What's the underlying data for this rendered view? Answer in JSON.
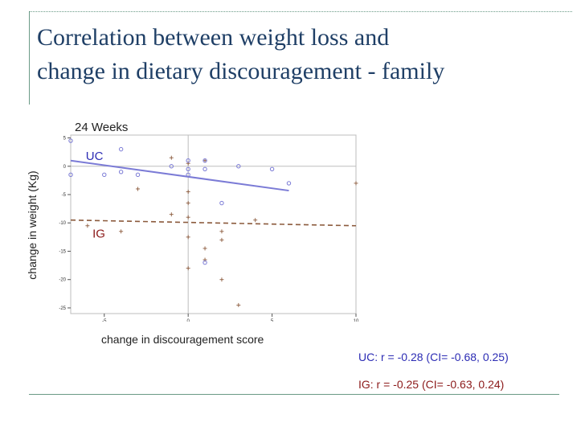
{
  "slide": {
    "title_line1": "Correlation between weight loss and",
    "title_line2": "change in dietary discouragement - family"
  },
  "stats": {
    "uc": "UC: r = -0.28 (CI= -0.68, 0.25)",
    "ig": "IG:  r = -0.25 (CI= -0.63, 0.24)"
  },
  "chart_data": {
    "type": "scatter",
    "title": "24 Weeks",
    "xlabel": "change in discouragement score",
    "ylabel": "change in weight (Kg)",
    "xlim": [
      -7,
      10
    ],
    "ylim": [
      -26,
      5.5
    ],
    "xticks": [
      -5,
      0,
      5,
      10
    ],
    "yticks": [
      5,
      0,
      -5,
      -10,
      -15,
      -20,
      -25
    ],
    "reference_lines": {
      "x": 0,
      "y": 0
    },
    "colors": {
      "UC": "#7b7bd6",
      "IG": "#8b5a3c",
      "uc_label": "#2c2cb4",
      "ig_label": "#8c1a1a"
    },
    "series": [
      {
        "name": "UC",
        "marker": "circle",
        "points": [
          [
            -7,
            4.5
          ],
          [
            -7,
            -1.5
          ],
          [
            -4,
            3
          ],
          [
            -5,
            -1.5
          ],
          [
            -4,
            -1
          ],
          [
            -3,
            -1.5
          ],
          [
            -1,
            0
          ],
          [
            0,
            1
          ],
          [
            0,
            -0.5
          ],
          [
            0,
            -1.5
          ],
          [
            1,
            1
          ],
          [
            1,
            -0.5
          ],
          [
            2,
            -6.5
          ],
          [
            1,
            -17
          ],
          [
            3,
            0
          ],
          [
            5,
            -0.5
          ],
          [
            6,
            -3
          ]
        ],
        "fit": {
          "x": [
            -7,
            6
          ],
          "y": [
            1,
            -4.3
          ]
        }
      },
      {
        "name": "IG",
        "marker": "plus",
        "points": [
          [
            -6,
            -10.5
          ],
          [
            -4,
            -11.5
          ],
          [
            -3,
            -4
          ],
          [
            -1,
            1.5
          ],
          [
            -1,
            -8.5
          ],
          [
            1,
            1
          ],
          [
            0,
            0.5
          ],
          [
            0,
            -4.5
          ],
          [
            0,
            -6.5
          ],
          [
            0,
            -9
          ],
          [
            0,
            -12.5
          ],
          [
            0,
            -18
          ],
          [
            1,
            -14.5
          ],
          [
            1,
            -16.5
          ],
          [
            2,
            -11.5
          ],
          [
            2,
            -13
          ],
          [
            2,
            -20
          ],
          [
            3,
            -24.5
          ],
          [
            4,
            -9.5
          ],
          [
            10,
            -3
          ]
        ],
        "fit": {
          "x": [
            -7,
            10
          ],
          "y": [
            -9.5,
            -10.5
          ]
        }
      }
    ]
  }
}
